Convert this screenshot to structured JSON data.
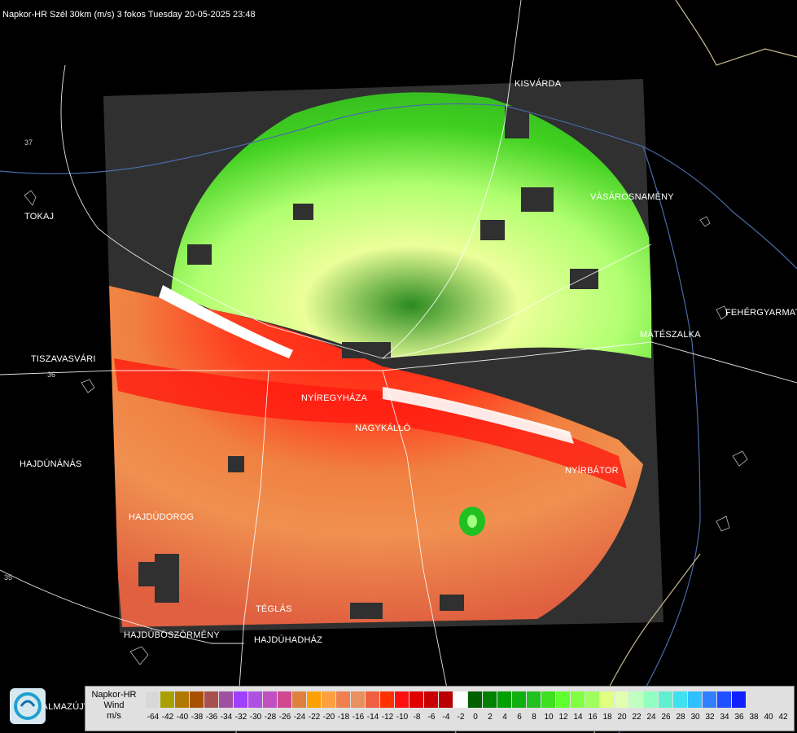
{
  "title": "Napkor-HR Szél 30km (m/s) 3 fokos Tuesday 20-05-2025 23:48",
  "cities": [
    {
      "name": "TOKAJ",
      "id": "tokaj"
    },
    {
      "name": "TISZAVASVÁRI",
      "id": "tiszavasvari"
    },
    {
      "name": "HAJDÚNÁNÁS",
      "id": "hajdunanas"
    },
    {
      "name": "HAJDÚDOROG",
      "id": "hajdudorog"
    },
    {
      "name": "HAJDÚBÖSZÖRMÉNY",
      "id": "hajduboszormeny"
    },
    {
      "name": "HAJDÚHADHÁZ",
      "id": "hajduhadhaz"
    },
    {
      "name": "TÉGLÁS",
      "id": "teglas"
    },
    {
      "name": "NYÍREGYHÁZA",
      "id": "nyiregyhaza"
    },
    {
      "name": "NAGYKÁLLÓ",
      "id": "nagykallo"
    },
    {
      "name": "NYÍRBÁTOR",
      "id": "nyirbator"
    },
    {
      "name": "MÁTÉSZALKA",
      "id": "mateszalka"
    },
    {
      "name": "FEHÉRGYARMAT",
      "id": "fehergyarmat"
    },
    {
      "name": "VÁSÁROSNAMÉNY",
      "id": "vasarosnameny"
    },
    {
      "name": "KISVÁRDA",
      "id": "kisvarda"
    },
    {
      "name": "BALMAZÚJVÁROS",
      "id": "balmazujvaros"
    }
  ],
  "road_numbers": [
    "37",
    "36",
    "35"
  ],
  "legend": {
    "title_line1": "Napkor-HR",
    "title_line2": "Wind",
    "title_line3": "m/s",
    "colors": [
      "#d8d8d8",
      "#a8a000",
      "#b07800",
      "#a85000",
      "#a85050",
      "#a050a0",
      "#a040ff",
      "#b050e0",
      "#c050c0",
      "#d04890",
      "#e08040",
      "#ffa000",
      "#ffa040",
      "#f08050",
      "#e89060",
      "#f06040",
      "#ff3000",
      "#ff1010",
      "#e00000",
      "#c80000",
      "#b80000",
      "#ffffff",
      "#006000",
      "#008000",
      "#00a000",
      "#10b010",
      "#20c020",
      "#40e020",
      "#60ff30",
      "#80ff40",
      "#a0ff60",
      "#e0ff80",
      "#e0ffb0",
      "#c0ffc0",
      "#90ffc0",
      "#60f0d0",
      "#40e0f0",
      "#30c0ff",
      "#3080ff",
      "#2050ff",
      "#1020ff"
    ],
    "ticks": [
      "-64",
      "-42",
      "-40",
      "-38",
      "-36",
      "-34",
      "-32",
      "-30",
      "-28",
      "-26",
      "-24",
      "-22",
      "-20",
      "-18",
      "-16",
      "-14",
      "-12",
      "-10",
      "-8",
      "-6",
      "-4",
      "-2",
      "0",
      "2",
      "4",
      "6",
      "8",
      "10",
      "12",
      "14",
      "16",
      "18",
      "20",
      "22",
      "24",
      "26",
      "28",
      "30",
      "32",
      "34",
      "36",
      "38",
      "40",
      "42"
    ]
  }
}
